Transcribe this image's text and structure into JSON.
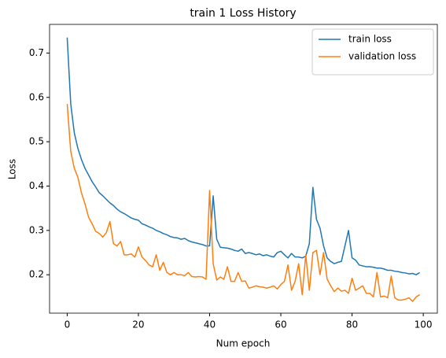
{
  "chart_data": {
    "type": "line",
    "title": "train 1 Loss History",
    "xlabel": "Num epoch",
    "ylabel": "Loss",
    "x": [
      0,
      1,
      2,
      3,
      4,
      5,
      6,
      7,
      8,
      9,
      10,
      11,
      12,
      13,
      14,
      15,
      16,
      17,
      18,
      19,
      20,
      21,
      22,
      23,
      24,
      25,
      26,
      27,
      28,
      29,
      30,
      31,
      32,
      33,
      34,
      35,
      36,
      37,
      38,
      39,
      40,
      41,
      42,
      43,
      44,
      45,
      46,
      47,
      48,
      49,
      50,
      51,
      52,
      53,
      54,
      55,
      56,
      57,
      58,
      59,
      60,
      61,
      62,
      63,
      64,
      65,
      66,
      67,
      68,
      69,
      70,
      71,
      72,
      73,
      74,
      75,
      76,
      77,
      78,
      79,
      80,
      81,
      82,
      83,
      84,
      85,
      86,
      87,
      88,
      89,
      90,
      91,
      92,
      93,
      94,
      95,
      96,
      97,
      98,
      99
    ],
    "series": [
      {
        "name": "train loss",
        "color": "#1f77b4",
        "values": [
          0.735,
          0.585,
          0.52,
          0.485,
          0.46,
          0.44,
          0.425,
          0.41,
          0.398,
          0.385,
          0.378,
          0.37,
          0.362,
          0.356,
          0.348,
          0.342,
          0.338,
          0.333,
          0.328,
          0.325,
          0.323,
          0.315,
          0.312,
          0.308,
          0.305,
          0.3,
          0.297,
          0.293,
          0.29,
          0.286,
          0.284,
          0.283,
          0.28,
          0.282,
          0.277,
          0.274,
          0.272,
          0.27,
          0.268,
          0.265,
          0.265,
          0.378,
          0.28,
          0.262,
          0.261,
          0.26,
          0.258,
          0.255,
          0.253,
          0.258,
          0.248,
          0.25,
          0.248,
          0.245,
          0.247,
          0.243,
          0.245,
          0.242,
          0.24,
          0.25,
          0.253,
          0.245,
          0.238,
          0.248,
          0.24,
          0.24,
          0.238,
          0.242,
          0.27,
          0.397,
          0.325,
          0.305,
          0.265,
          0.238,
          0.23,
          0.225,
          0.228,
          0.23,
          0.265,
          0.3,
          0.238,
          0.233,
          0.222,
          0.22,
          0.218,
          0.218,
          0.217,
          0.215,
          0.215,
          0.213,
          0.21,
          0.21,
          0.208,
          0.207,
          0.205,
          0.204,
          0.202,
          0.203,
          0.2,
          0.205
        ]
      },
      {
        "name": "validation loss",
        "color": "#ff7f0e",
        "values": [
          0.585,
          0.478,
          0.44,
          0.42,
          0.385,
          0.36,
          0.33,
          0.315,
          0.298,
          0.293,
          0.285,
          0.295,
          0.32,
          0.27,
          0.265,
          0.275,
          0.245,
          0.245,
          0.247,
          0.24,
          0.263,
          0.24,
          0.232,
          0.222,
          0.218,
          0.245,
          0.21,
          0.228,
          0.205,
          0.2,
          0.205,
          0.2,
          0.2,
          0.198,
          0.205,
          0.196,
          0.195,
          0.196,
          0.195,
          0.19,
          0.39,
          0.225,
          0.188,
          0.195,
          0.19,
          0.218,
          0.185,
          0.185,
          0.205,
          0.185,
          0.186,
          0.17,
          0.172,
          0.175,
          0.173,
          0.172,
          0.17,
          0.172,
          0.175,
          0.168,
          0.178,
          0.185,
          0.222,
          0.165,
          0.185,
          0.225,
          0.155,
          0.245,
          0.165,
          0.25,
          0.255,
          0.2,
          0.25,
          0.19,
          0.175,
          0.162,
          0.17,
          0.163,
          0.165,
          0.158,
          0.192,
          0.165,
          0.17,
          0.175,
          0.158,
          0.158,
          0.15,
          0.205,
          0.15,
          0.152,
          0.148,
          0.197,
          0.148,
          0.143,
          0.143,
          0.145,
          0.148,
          0.14,
          0.15,
          0.155
        ]
      }
    ],
    "xlim": [
      -4.95,
      103.95
    ],
    "ylim": [
      0.1134,
      0.7646
    ],
    "xticks": [
      0,
      20,
      40,
      60,
      80,
      100
    ],
    "yticks": [
      0.2,
      0.3,
      0.4,
      0.5,
      0.6,
      0.7
    ],
    "legend": "upper right",
    "grid": false
  }
}
